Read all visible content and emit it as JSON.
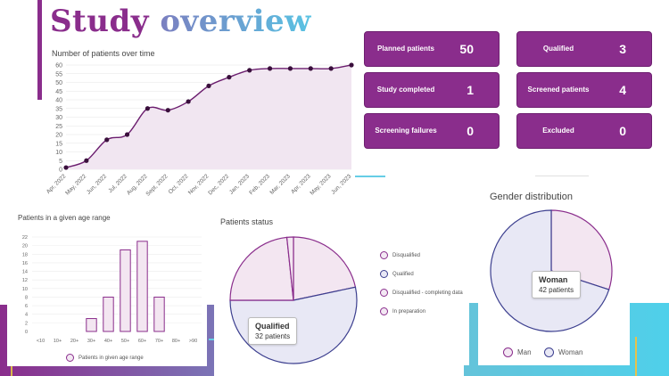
{
  "page": {
    "title_part1": "Study",
    "title_part2": "overview"
  },
  "kpis": [
    {
      "label": "Planned patients",
      "value": "50"
    },
    {
      "label": "Study completed",
      "value": "1"
    },
    {
      "label": "Screening failures",
      "value": "0"
    },
    {
      "label": "Qualified",
      "value": "3"
    },
    {
      "label": "Screened patients",
      "value": "4"
    },
    {
      "label": "Excluded",
      "value": "0"
    }
  ],
  "colors": {
    "primary": "#8a2d8c",
    "line_fill": "#f1e6f1",
    "pie_blue": "#3c3f8f",
    "pie_blue_fill": "#e8e8f5",
    "pie_pink_fill": "#f3e6f1",
    "accent_cyan": "#59c3e3"
  },
  "chart_data": [
    {
      "type": "area",
      "title": "Number of patients over time",
      "x": [
        "Apr, 2022",
        "May, 2022",
        "Jun, 2022",
        "Jul, 2022",
        "Aug, 2022",
        "Sept, 2022",
        "Oct, 2022",
        "Nov, 2022",
        "Dec, 2022",
        "Jan, 2023",
        "Feb, 2023",
        "Mar, 2023",
        "Apr, 2023",
        "May, 2023",
        "Jun, 2023"
      ],
      "values": [
        1,
        5,
        17,
        20,
        35,
        34,
        39,
        48,
        53,
        57,
        58,
        58,
        58,
        58,
        60
      ],
      "yticks": [
        0,
        5,
        10,
        15,
        20,
        25,
        30,
        35,
        40,
        45,
        50,
        55,
        60
      ],
      "ylim": [
        0,
        60
      ],
      "grid": true
    },
    {
      "type": "bar",
      "title": "Patients in a given age range",
      "categories": [
        "<10",
        "10+",
        "20+",
        "30+",
        "40+",
        "50+",
        "60+",
        "70+",
        "80+",
        ">90"
      ],
      "values": [
        0,
        0,
        0,
        3,
        8,
        19,
        21,
        8,
        0,
        0
      ],
      "yticks": [
        0,
        2,
        4,
        6,
        8,
        10,
        12,
        14,
        16,
        18,
        20,
        22
      ],
      "ylim": [
        0,
        22
      ],
      "legend": "Patients in given age range",
      "legend_position": "bottom"
    },
    {
      "type": "pie",
      "title": "Patients status",
      "slices": [
        {
          "name": "Disqualified",
          "value": 13
        },
        {
          "name": "Qualified",
          "value": 32
        },
        {
          "name": "Disqualified - completing data",
          "value": 14
        },
        {
          "name": "In preparation",
          "value": 1
        }
      ],
      "tooltip": {
        "name": "Qualified",
        "text": "32 patients"
      },
      "legend_position": "right"
    },
    {
      "type": "pie",
      "title": "Gender distribution",
      "slices": [
        {
          "name": "Man",
          "value": 18
        },
        {
          "name": "Woman",
          "value": 42
        }
      ],
      "tooltip": {
        "name": "Woman",
        "text": "42 patients"
      },
      "legend_position": "bottom"
    }
  ]
}
